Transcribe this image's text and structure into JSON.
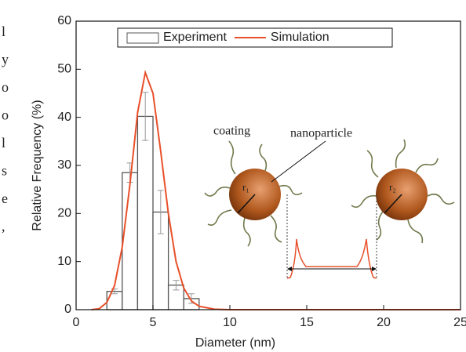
{
  "chart_data": {
    "type": "histogram",
    "xlabel": "Diameter (nm)",
    "ylabel": "Relative Frequency (%)",
    "xlim": [
      0,
      25
    ],
    "xticks": [
      0,
      5,
      10,
      15,
      20,
      25
    ],
    "ylim": [
      0,
      60
    ],
    "yticks": [
      0,
      10,
      20,
      30,
      40,
      50,
      60
    ],
    "legend": "top",
    "series": [
      {
        "name": "Experiment",
        "type": "histogram",
        "color": "#555555",
        "bins": [
          2,
          3,
          4,
          5,
          6,
          7,
          8
        ],
        "values": [
          3.8,
          28.5,
          40.2,
          20.3,
          5.1,
          2.3
        ],
        "errors": [
          0.5,
          2,
          5,
          4.5,
          1,
          1
        ]
      },
      {
        "name": "Simulation",
        "type": "line",
        "color": "#e8502a",
        "x": [
          1,
          1.5,
          2,
          2.5,
          3,
          3.5,
          4,
          4.5,
          5,
          5.5,
          6,
          6.5,
          7,
          7.5,
          8,
          9,
          10,
          25
        ],
        "values": [
          0,
          0.2,
          1.5,
          5,
          13,
          26,
          41,
          49.3,
          45,
          33,
          20,
          10,
          4.5,
          1.8,
          0.7,
          0.1,
          0,
          0
        ]
      }
    ],
    "inset": {
      "coating": "coating",
      "nanoparticle": "nanoparticle",
      "r1": "r₁",
      "r2": "r₂"
    }
  },
  "margin_text": [
    "l",
    "y",
    "o",
    "o",
    "l",
    "s",
    "e",
    ","
  ]
}
